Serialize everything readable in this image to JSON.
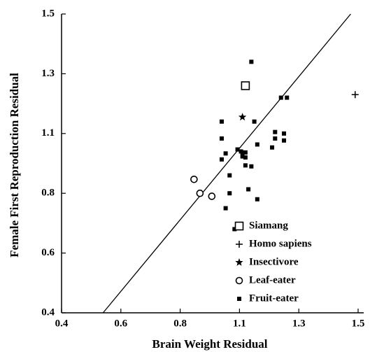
{
  "chart_data": {
    "type": "scatter",
    "x_label": "Brain Weight Residual",
    "y_label": "Female First Reproduction Residual",
    "xlim": [
      0.4,
      1.5
    ],
    "ylim": [
      0.4,
      1.5
    ],
    "xticks": [
      0.4,
      0.6,
      0.8,
      1.1,
      1.3,
      1.5
    ],
    "yticks": [
      0.4,
      0.6,
      0.8,
      1.1,
      1.3,
      1.5
    ],
    "legend": "lower right",
    "series": [
      {
        "name": "Siamang",
        "marker": "open-square",
        "color": "#000000",
        "x": [
          1.12
        ],
        "y": [
          1.26
        ]
      },
      {
        "name": "Homo sapiens",
        "marker": "plus",
        "color": "#000000",
        "x": [
          1.49
        ],
        "y": [
          1.23
        ]
      },
      {
        "name": "Insectivore",
        "marker": "star",
        "color": "#000000",
        "x": [
          1.11
        ],
        "y": [
          1.155
        ]
      },
      {
        "name": "Leaf-eater",
        "marker": "open-circle",
        "color": "#000000",
        "x": [
          0.87,
          0.9,
          0.96
        ],
        "y": [
          0.87,
          0.8,
          0.79
        ]
      },
      {
        "name": "Fruit-eater",
        "marker": "filled-square",
        "color": "#000000",
        "x": [
          1.14,
          1.24,
          1.26,
          1.01,
          1.15,
          1.22,
          1.25,
          1.22,
          1.25,
          1.21,
          1.16,
          1.01,
          1.03,
          1.09,
          1.105,
          1.11,
          1.12,
          1.11,
          1.12,
          1.01,
          1.12,
          1.14,
          1.05,
          1.05,
          1.13,
          1.16,
          1.03,
          1.075
        ],
        "y": [
          1.34,
          1.22,
          1.22,
          1.14,
          1.14,
          1.105,
          1.1,
          1.075,
          1.065,
          1.03,
          1.045,
          1.075,
          1.0,
          1.02,
          1.01,
          1.005,
          1.005,
          0.985,
          0.98,
          0.97,
          0.94,
          0.935,
          0.89,
          0.8,
          0.82,
          0.78,
          0.75,
          0.68
        ]
      }
    ],
    "fit_line": {
      "x": [
        0.54,
        1.475
      ],
      "y": [
        0.4,
        1.5
      ]
    }
  }
}
